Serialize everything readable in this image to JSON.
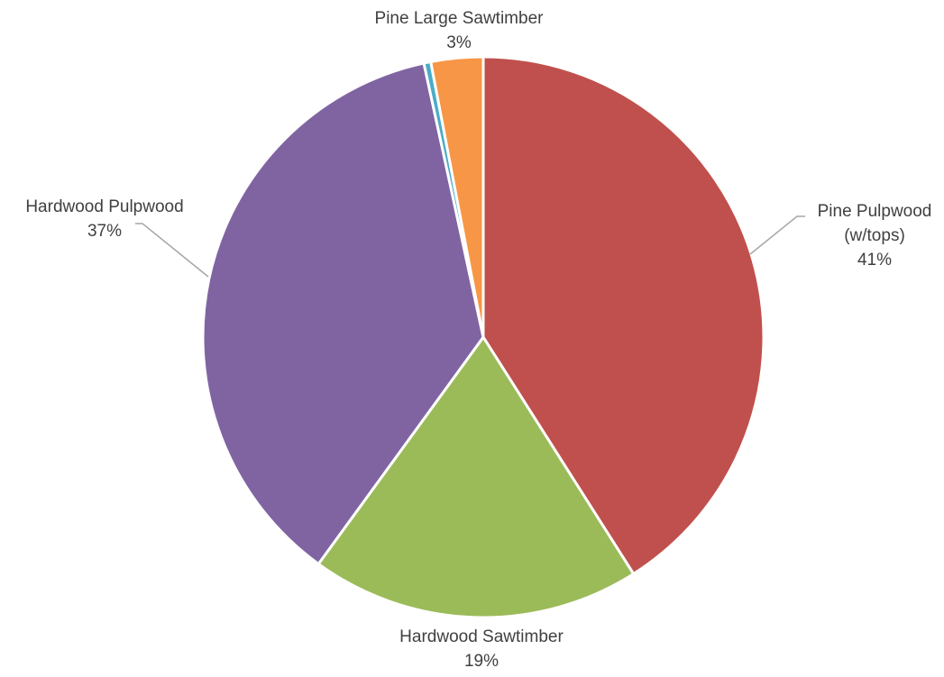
{
  "chart_data": {
    "type": "pie",
    "title": "",
    "start_angle_deg": 0,
    "direction": "clockwise",
    "slices": [
      {
        "label": "Pine Pulpwood",
        "label_line2": "(w/tops)",
        "value": 41,
        "percent_label": "41%",
        "color": "#C0504D",
        "show_label": true
      },
      {
        "label": "Hardwood Sawtimber",
        "label_line2": "",
        "value": 19,
        "percent_label": "19%",
        "color": "#9BBB59",
        "show_label": true
      },
      {
        "label": "Hardwood Pulpwood",
        "label_line2": "",
        "value": 36.6,
        "percent_label": "37%",
        "color": "#8064A2",
        "show_label": true
      },
      {
        "label": "",
        "label_line2": "",
        "value": 0.4,
        "percent_label": "",
        "color": "#4BACC6",
        "show_label": false
      },
      {
        "label": "Pine Large Sawtimber",
        "label_line2": "",
        "value": 3,
        "percent_label": "3%",
        "color": "#F79646",
        "show_label": true
      }
    ],
    "legend": "none"
  }
}
